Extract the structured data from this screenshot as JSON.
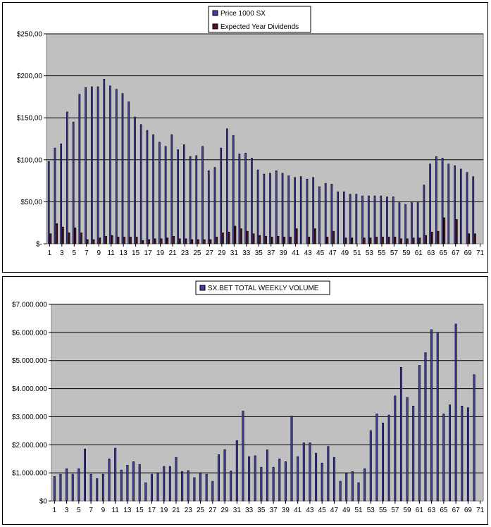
{
  "colors": {
    "price": "#3f3fa8",
    "dividend": "#5a0f1e",
    "volume": "#3f3fa8",
    "plot_bg": "#c0c0c0",
    "grid": "#000000"
  },
  "chart_data": [
    {
      "type": "bar",
      "title": "",
      "xlabel": "",
      "ylabel": "",
      "ylim": [
        0,
        250
      ],
      "y_tick_labels": [
        "$-",
        "$50,00",
        "$100,00",
        "$150,00",
        "$200,00",
        "$250,00"
      ],
      "x_tick_labels": [
        "1",
        "3",
        "5",
        "7",
        "9",
        "11",
        "13",
        "15",
        "17",
        "19",
        "21",
        "23",
        "25",
        "27",
        "29",
        "31",
        "33",
        "35",
        "37",
        "39",
        "41",
        "43",
        "45",
        "47",
        "49",
        "51",
        "53",
        "55",
        "57",
        "59",
        "61",
        "63",
        "65",
        "67",
        "69",
        "71"
      ],
      "legend": "top-center",
      "grid": true,
      "series": [
        {
          "name": "Price 1000 SX",
          "values": [
            98,
            114,
            119,
            157,
            145,
            178,
            186,
            187,
            187,
            196,
            188,
            184,
            179,
            169,
            151,
            142,
            135,
            130,
            121,
            116,
            130,
            112,
            118,
            104,
            105,
            116,
            87,
            91,
            114,
            137,
            129,
            107,
            108,
            102,
            88,
            83,
            84,
            87,
            84,
            81,
            79,
            80,
            77,
            79,
            68,
            72,
            71,
            62,
            62,
            59,
            59,
            57,
            57,
            57,
            57,
            56,
            56,
            49,
            47,
            50,
            50,
            70,
            95,
            104,
            102,
            95,
            93,
            89,
            85,
            80,
            null
          ]
        },
        {
          "name": "Expected Year Dividends",
          "values": [
            12,
            24,
            20,
            13,
            19,
            13,
            5,
            5,
            7,
            9,
            10,
            8,
            8,
            8,
            8,
            4,
            5,
            6,
            6,
            7,
            9,
            6,
            6,
            5,
            5,
            5,
            5,
            8,
            13,
            14,
            21,
            18,
            15,
            12,
            10,
            9,
            8,
            9,
            8,
            8,
            18,
            0,
            8,
            18,
            0,
            8,
            15,
            0,
            7,
            7,
            0,
            7,
            7,
            8,
            8,
            8,
            8,
            6,
            6,
            7,
            7,
            10,
            14,
            15,
            31,
            0,
            29,
            0,
            12,
            12,
            0
          ]
        }
      ]
    },
    {
      "type": "bar",
      "title": "",
      "xlabel": "",
      "ylabel": "",
      "ylim": [
        0,
        7000000
      ],
      "y_tick_labels": [
        "$0",
        "$1.000.000",
        "$2.000.000",
        "$3.000.000",
        "$4.000.000",
        "$5.000.000",
        "$6.000.000",
        "$7.000.000"
      ],
      "x_tick_labels": [
        "1",
        "3",
        "5",
        "7",
        "9",
        "11",
        "13",
        "15",
        "17",
        "19",
        "21",
        "23",
        "25",
        "27",
        "29",
        "31",
        "33",
        "35",
        "37",
        "39",
        "41",
        "43",
        "45",
        "47",
        "49",
        "51",
        "53",
        "55",
        "57",
        "59",
        "61",
        "63",
        "65",
        "67",
        "69",
        "71"
      ],
      "legend": "top-center",
      "grid": true,
      "series": [
        {
          "name": "SX.BET TOTAL WEEKLY VOLUME",
          "values": [
            870000,
            950000,
            1150000,
            950000,
            1150000,
            1850000,
            950000,
            800000,
            950000,
            1500000,
            1880000,
            1100000,
            1270000,
            1400000,
            1300000,
            650000,
            950000,
            1000000,
            1230000,
            1230000,
            1550000,
            1050000,
            1080000,
            830000,
            1000000,
            950000,
            700000,
            1650000,
            1830000,
            1070000,
            2150000,
            3200000,
            1580000,
            1610000,
            1200000,
            1820000,
            1200000,
            1500000,
            1400000,
            3020000,
            1580000,
            2070000,
            2070000,
            1700000,
            1350000,
            1940000,
            1550000,
            700000,
            980000,
            1050000,
            650000,
            1150000,
            2500000,
            3100000,
            2780000,
            3060000,
            3740000,
            4760000,
            3680000,
            3380000,
            4830000,
            5280000,
            6100000,
            6000000,
            3100000,
            3420000,
            6300000,
            3380000,
            3320000,
            4500000,
            null
          ]
        }
      ]
    }
  ]
}
